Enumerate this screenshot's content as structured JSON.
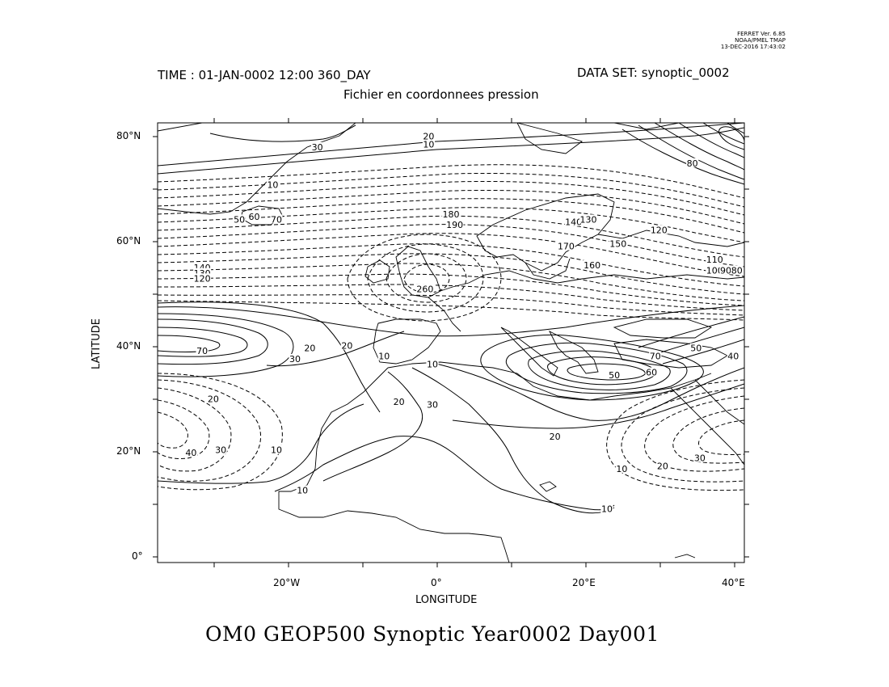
{
  "stamp": {
    "line1": "FERRET Ver. 6.85",
    "line2": "NOAA/PMEL TMAP",
    "line3": "13-DEC-2016 17:43:02"
  },
  "header": {
    "time": "TIME : 01-JAN-0002 12:00 360_DAY",
    "dataset": "DATA SET: synoptic_0002",
    "subtitle": "Fichier en coordonnees pression"
  },
  "axes": {
    "xlabel": "LONGITUDE",
    "ylabel": "LATITUDE",
    "xticks": [
      "20°W",
      "0°",
      "20°E",
      "40°E"
    ],
    "yticks": [
      "80°N",
      "60°N",
      "40°N",
      "20°N",
      "0°"
    ]
  },
  "footer": {
    "title": "OM0 GEOP500 Synoptic Year0002 Day001"
  },
  "map_data": {
    "lon_range": [
      -37.5,
      41.5
    ],
    "lat_range": [
      1,
      83
    ],
    "contour_labels": [
      {
        "text": "30",
        "lon": -16,
        "lat": 78.5
      },
      {
        "text": "20",
        "lon": -1,
        "lat": 80.5
      },
      {
        "text": "10",
        "lon": -1,
        "lat": 79
      },
      {
        "text": "80",
        "lon": 34.5,
        "lat": 75.5
      },
      {
        "text": "10",
        "lon": -22,
        "lat": 71.5
      },
      {
        "text": "50",
        "lon": -26.5,
        "lat": 65
      },
      {
        "text": "60",
        "lon": -24.5,
        "lat": 65.5
      },
      {
        "text": "70",
        "lon": -21.5,
        "lat": 65
      },
      {
        "text": "180",
        "lon": 2,
        "lat": 66
      },
      {
        "text": "190",
        "lon": 2.5,
        "lat": 64
      },
      {
        "text": "140",
        "lon": 18.5,
        "lat": 64.5
      },
      {
        "text": "130",
        "lon": 20.5,
        "lat": 65
      },
      {
        "text": "120",
        "lon": 30,
        "lat": 63
      },
      {
        "text": "150",
        "lon": 24.5,
        "lat": 60.5
      },
      {
        "text": "170",
        "lon": 17.5,
        "lat": 60
      },
      {
        "text": "160",
        "lon": 21,
        "lat": 56.5
      },
      {
        "text": "110",
        "lon": 37.5,
        "lat": 57.5
      },
      {
        "text": "100",
        "lon": 37.5,
        "lat": 55.5
      },
      {
        "text": "90",
        "lon": 39,
        "lat": 55.5
      },
      {
        "text": "80",
        "lon": 40.5,
        "lat": 55.5
      },
      {
        "text": "140",
        "lon": -31.5,
        "lat": 56
      },
      {
        "text": "130",
        "lon": -31.5,
        "lat": 55
      },
      {
        "text": "120",
        "lon": -31.5,
        "lat": 54
      },
      {
        "text": "260",
        "lon": -1.5,
        "lat": 52
      },
      {
        "text": "70",
        "lon": -31.5,
        "lat": 40.5
      },
      {
        "text": "30",
        "lon": -19,
        "lat": 39
      },
      {
        "text": "20",
        "lon": -17,
        "lat": 41
      },
      {
        "text": "20",
        "lon": -12,
        "lat": 41.5
      },
      {
        "text": "10",
        "lon": -7,
        "lat": 39.5
      },
      {
        "text": "10",
        "lon": -0.5,
        "lat": 38
      },
      {
        "text": "20",
        "lon": -5,
        "lat": 31
      },
      {
        "text": "30",
        "lon": -0.5,
        "lat": 30.5
      },
      {
        "text": "50",
        "lon": 24,
        "lat": 36
      },
      {
        "text": "60",
        "lon": 29,
        "lat": 36.5
      },
      {
        "text": "70",
        "lon": 29.5,
        "lat": 39.5
      },
      {
        "text": "50",
        "lon": 35,
        "lat": 41
      },
      {
        "text": "40",
        "lon": 40,
        "lat": 39.5
      },
      {
        "text": "20",
        "lon": 16,
        "lat": 24.5
      },
      {
        "text": "20",
        "lon": -30,
        "lat": 31.5
      },
      {
        "text": "40",
        "lon": -33,
        "lat": 21.5
      },
      {
        "text": "30",
        "lon": -29,
        "lat": 22
      },
      {
        "text": "10",
        "lon": -21.5,
        "lat": 22
      },
      {
        "text": "10",
        "lon": -18,
        "lat": 14.5
      },
      {
        "text": "10",
        "lon": 23,
        "lat": 11
      },
      {
        "text": "10",
        "lon": 25,
        "lat": 18.5
      },
      {
        "text": "20",
        "lon": 30.5,
        "lat": 19
      },
      {
        "text": "30",
        "lon": 35.5,
        "lat": 20.5
      }
    ]
  }
}
